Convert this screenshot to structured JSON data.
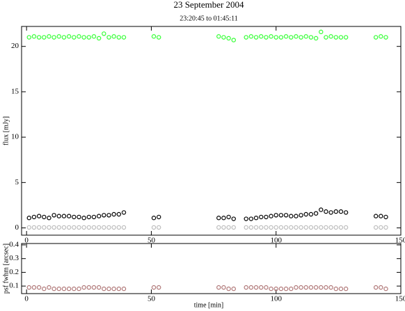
{
  "chart_data": [
    {
      "type": "scatter",
      "title": "23 September 2004",
      "subtitle": "23:20:45 to 01:45:11",
      "ylabel": "flux [mJy]",
      "x": [
        1,
        3,
        5,
        7,
        9,
        11,
        13,
        15,
        17,
        19,
        21,
        23,
        25,
        27,
        29,
        31,
        33,
        35,
        37,
        39,
        51,
        53,
        77,
        79,
        81,
        83,
        88,
        90,
        92,
        94,
        96,
        98,
        100,
        102,
        104,
        106,
        108,
        110,
        112,
        114,
        116,
        118,
        120,
        122,
        124,
        126,
        128,
        140,
        142,
        144
      ],
      "series": [
        {
          "color": "#33ff33",
          "values": [
            21.0,
            21.1,
            21.0,
            21.0,
            21.1,
            21.0,
            21.1,
            21.0,
            21.1,
            21.0,
            21.1,
            21.0,
            21.0,
            21.1,
            20.9,
            21.4,
            21.0,
            21.1,
            21.0,
            21.0,
            21.1,
            21.0,
            21.1,
            21.0,
            20.9,
            20.7,
            21.0,
            21.1,
            21.0,
            21.1,
            21.0,
            21.1,
            21.0,
            21.0,
            21.1,
            21.0,
            21.1,
            21.0,
            21.1,
            21.0,
            20.9,
            21.6,
            21.0,
            21.1,
            21.0,
            21.0,
            21.0,
            21.0,
            21.1,
            21.0
          ]
        },
        {
          "color": "#000000",
          "values": [
            1.1,
            1.2,
            1.3,
            1.2,
            1.1,
            1.4,
            1.3,
            1.3,
            1.3,
            1.2,
            1.2,
            1.1,
            1.2,
            1.2,
            1.3,
            1.4,
            1.4,
            1.5,
            1.5,
            1.7,
            1.1,
            1.2,
            1.1,
            1.1,
            1.2,
            1.0,
            1.0,
            1.0,
            1.1,
            1.2,
            1.2,
            1.3,
            1.4,
            1.4,
            1.4,
            1.3,
            1.3,
            1.4,
            1.5,
            1.5,
            1.6,
            2.0,
            1.8,
            1.7,
            1.8,
            1.8,
            1.7,
            1.3,
            1.3,
            1.2
          ]
        },
        {
          "color": "#bbbbbb",
          "values": [
            0.05,
            0.05,
            0.05,
            0.05,
            0.05,
            0.05,
            0.05,
            0.05,
            0.05,
            0.05,
            0.05,
            0.05,
            0.05,
            0.05,
            0.05,
            0.05,
            0.05,
            0.05,
            0.05,
            0.05,
            0.05,
            0.05,
            0.05,
            0.05,
            0.05,
            0.05,
            0.05,
            0.05,
            0.05,
            0.05,
            0.05,
            0.05,
            0.05,
            0.05,
            0.05,
            0.05,
            0.05,
            0.05,
            0.05,
            0.05,
            0.05,
            0.05,
            0.05,
            0.05,
            0.05,
            0.05,
            0.05,
            0.05,
            0.05,
            0.05
          ]
        }
      ],
      "xlim": [
        -2,
        150
      ],
      "xticks": [
        0,
        50,
        100,
        150
      ],
      "ylim": [
        -0.8,
        22.2
      ],
      "yticks": [
        0,
        5,
        10,
        15,
        20
      ]
    },
    {
      "type": "scatter",
      "ylabel": "psf fwhm [arcsec]",
      "xlabel": "time [min]",
      "x": [
        1,
        3,
        5,
        7,
        9,
        11,
        13,
        15,
        17,
        19,
        21,
        23,
        25,
        27,
        29,
        31,
        33,
        35,
        37,
        39,
        51,
        53,
        77,
        79,
        81,
        83,
        88,
        90,
        92,
        94,
        96,
        98,
        100,
        102,
        104,
        106,
        108,
        110,
        112,
        114,
        116,
        118,
        120,
        122,
        124,
        126,
        128,
        140,
        142,
        144
      ],
      "series": [
        {
          "color": "#b07878",
          "values": [
            0.09,
            0.09,
            0.09,
            0.08,
            0.09,
            0.08,
            0.08,
            0.08,
            0.08,
            0.08,
            0.08,
            0.09,
            0.09,
            0.09,
            0.09,
            0.08,
            0.08,
            0.08,
            0.08,
            0.08,
            0.09,
            0.09,
            0.09,
            0.09,
            0.08,
            0.08,
            0.09,
            0.09,
            0.09,
            0.09,
            0.09,
            0.08,
            0.08,
            0.08,
            0.08,
            0.08,
            0.09,
            0.09,
            0.09,
            0.09,
            0.09,
            0.09,
            0.09,
            0.09,
            0.08,
            0.08,
            0.08,
            0.09,
            0.09,
            0.08
          ]
        }
      ],
      "xlim": [
        -2,
        150
      ],
      "xticks": [
        0,
        50,
        100,
        150
      ],
      "ylim": [
        0.045,
        0.41
      ],
      "yticks": [
        0.1,
        0.2,
        0.3,
        0.4
      ]
    }
  ]
}
